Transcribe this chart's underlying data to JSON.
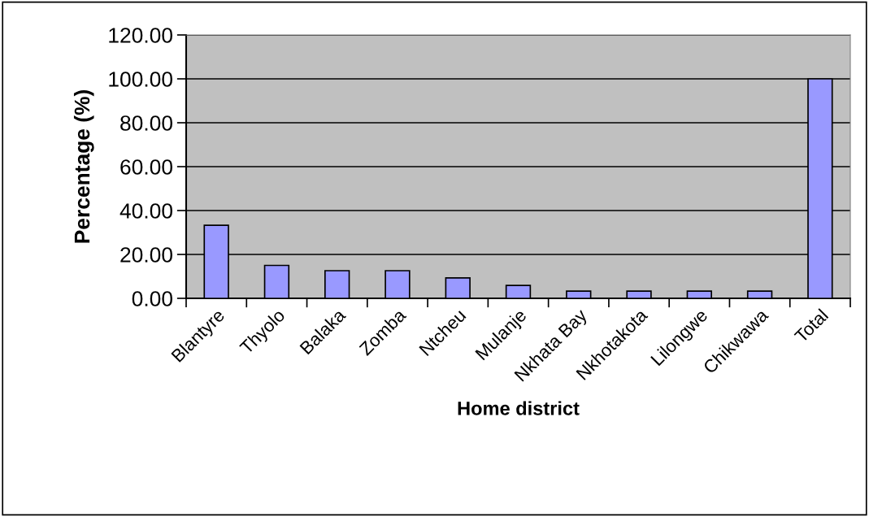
{
  "chart_data": {
    "type": "bar",
    "xlabel": "Home district",
    "ylabel": "Percentage (%)",
    "categories": [
      "Blantyre",
      "Thyolo",
      "Balaka",
      "Zomba",
      "Ntcheu",
      "Mulanje",
      "Nkhata Bay",
      "Nkhotakota",
      "Lilongwe",
      "Chikwawa",
      "Total"
    ],
    "values": [
      33.3,
      15.0,
      12.6,
      12.6,
      9.3,
      5.9,
      3.3,
      3.3,
      3.3,
      3.3,
      100
    ],
    "color": "#9999ff",
    "ylim": [
      0,
      120
    ],
    "yticks": [
      {
        "value": 0,
        "label": "0.00"
      },
      {
        "value": 20,
        "label": "20.00"
      },
      {
        "value": 40,
        "label": "40.00"
      },
      {
        "value": 60,
        "label": "60.00"
      },
      {
        "value": 80,
        "label": "80.00"
      },
      {
        "value": 100,
        "label": "100.00"
      },
      {
        "value": 120,
        "label": "120.00"
      }
    ],
    "grid": "y",
    "legend": false
  }
}
